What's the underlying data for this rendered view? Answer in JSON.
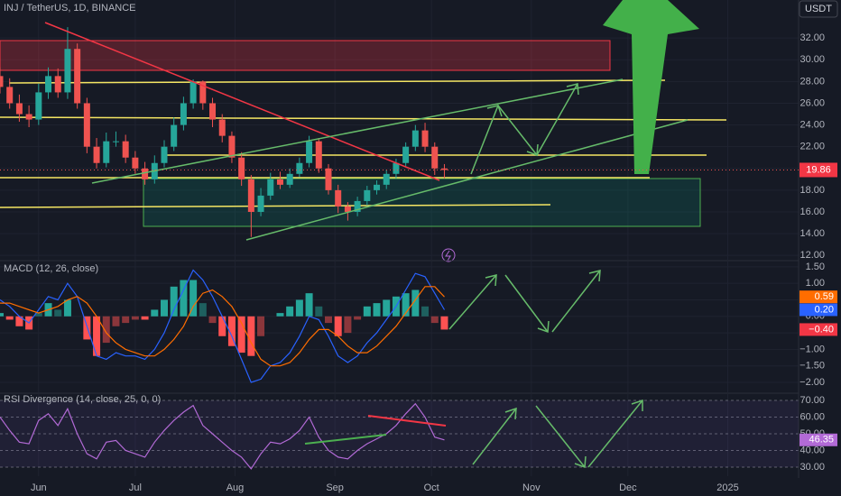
{
  "header": {
    "symbol": "INJ / TetherUS, 1D, BINANCE",
    "currency": "USDT"
  },
  "chart_data": [
    {
      "type": "candlestick",
      "x": [
        -12,
        -9,
        -6,
        -3,
        0,
        3,
        6,
        9,
        12,
        15,
        18,
        21,
        24,
        27,
        30,
        33,
        36,
        39,
        42,
        45,
        48,
        51,
        54,
        57,
        60,
        63,
        66,
        69,
        72,
        75,
        78,
        81,
        84,
        87,
        90,
        93,
        96,
        99,
        102,
        105,
        108,
        111,
        114,
        117,
        120,
        123,
        126
      ],
      "open": [
        28.5,
        27.5,
        26,
        25,
        24.5,
        27,
        28.5,
        27,
        31,
        26,
        22,
        20.5,
        22.5,
        22.5,
        21,
        20,
        19,
        20.5,
        22,
        24,
        26,
        28,
        26,
        24.5,
        23,
        21,
        19,
        16,
        17.5,
        19,
        18.5,
        19.5,
        20.5,
        22.5,
        20,
        18,
        16.5,
        16,
        17,
        18,
        18.5,
        19.5,
        20.5,
        22,
        23.5,
        22,
        20
      ],
      "high": [
        29.3,
        28.3,
        26.8,
        25.8,
        27.8,
        29.3,
        29.2,
        33.0,
        31.5,
        26.5,
        22.8,
        23.3,
        23.4,
        23.1,
        21.6,
        20.6,
        21.2,
        22.6,
        24.7,
        26.6,
        28.2,
        28.1,
        26.5,
        25.0,
        23.4,
        21.5,
        19.4,
        18.2,
        19.6,
        19.7,
        20.0,
        21.0,
        23.0,
        22.8,
        20.4,
        18.5,
        16.9,
        17.4,
        18.4,
        18.9,
        19.9,
        20.9,
        22.4,
        24.0,
        24.2,
        22.4,
        20.4
      ],
      "low": [
        26.9,
        25.5,
        24.3,
        23.8,
        24.0,
        26.4,
        26.5,
        26.4,
        25.5,
        21.4,
        20.0,
        20.1,
        22.0,
        20.5,
        19.5,
        18.5,
        18.6,
        20.1,
        21.6,
        23.5,
        25.5,
        25.4,
        23.8,
        22.4,
        20.5,
        18.4,
        13.7,
        15.6,
        17.1,
        18.1,
        18.2,
        19.2,
        20.1,
        19.6,
        17.6,
        15.9,
        15.2,
        15.6,
        16.6,
        17.6,
        18.1,
        19.1,
        20.2,
        21.6,
        21.5,
        19.4,
        19.1
      ],
      "close": [
        27.5,
        26,
        25,
        24.5,
        27,
        28.5,
        27,
        31,
        26,
        22,
        20.5,
        22.5,
        22.5,
        21,
        20,
        19,
        20.5,
        22,
        24,
        26,
        28,
        26,
        24.5,
        23,
        21,
        19,
        16,
        17.5,
        19,
        18.5,
        19.5,
        20.5,
        22.5,
        20,
        18,
        16.5,
        16,
        17,
        18,
        18.5,
        19.5,
        20.5,
        22,
        23.5,
        22,
        20,
        19.86
      ],
      "up_color": "#26a69a",
      "down_color": "#ef5350",
      "xlim": [
        -12,
        236
      ],
      "xticks": [
        {
          "value": 0,
          "label": "Jun"
        },
        {
          "value": 30,
          "label": "Jul"
        },
        {
          "value": 61,
          "label": "Aug"
        },
        {
          "value": 92,
          "label": "Sep"
        },
        {
          "value": 122,
          "label": "Oct"
        },
        {
          "value": 153,
          "label": "Nov"
        },
        {
          "value": 183,
          "label": "Dec"
        },
        {
          "value": 214,
          "label": "2025"
        }
      ],
      "ylim": [
        11.6,
        35.5
      ],
      "yticks": [
        {
          "value": 12,
          "label": "12.00"
        },
        {
          "value": 14,
          "label": "14.00"
        },
        {
          "value": 16,
          "label": "16.00"
        },
        {
          "value": 18,
          "label": "18.00"
        },
        {
          "value": 20,
          "label": "20.00"
        },
        {
          "value": 22,
          "label": "22.00"
        },
        {
          "value": 24,
          "label": "24.00"
        },
        {
          "value": 26,
          "label": "26.00"
        },
        {
          "value": 28,
          "label": "28.00"
        },
        {
          "value": 30,
          "label": "30.00"
        },
        {
          "value": 32,
          "label": "32.00"
        }
      ]
    },
    {
      "type": "macd",
      "title": "MACD (12, 26, close)",
      "macd": {
        "color": "#2962ff",
        "last_label": "0.20",
        "values": [
          0.5,
          0.3,
          0.0,
          -0.2,
          0.2,
          0.6,
          0.5,
          1.0,
          0.6,
          -0.3,
          -1.2,
          -1.3,
          -1.1,
          -1.2,
          -1.2,
          -1.3,
          -1.0,
          -0.5,
          0.2,
          0.8,
          1.4,
          1.1,
          0.6,
          0.0,
          -0.6,
          -1.3,
          -2.0,
          -1.9,
          -1.5,
          -1.4,
          -1.1,
          -0.6,
          0.0,
          -0.1,
          -0.6,
          -1.2,
          -1.4,
          -1.2,
          -0.8,
          -0.5,
          -0.1,
          0.3,
          0.8,
          1.3,
          1.2,
          0.7,
          0.2
        ]
      },
      "signal": {
        "color": "#ff6d00",
        "last_label": "0.59",
        "values": [
          0.4,
          0.4,
          0.3,
          0.2,
          0.1,
          0.2,
          0.3,
          0.5,
          0.6,
          0.4,
          0.0,
          -0.5,
          -0.8,
          -1.0,
          -1.1,
          -1.2,
          -1.2,
          -1.0,
          -0.7,
          -0.3,
          0.3,
          0.7,
          0.8,
          0.6,
          0.3,
          -0.2,
          -0.8,
          -1.3,
          -1.5,
          -1.5,
          -1.4,
          -1.1,
          -0.7,
          -0.4,
          -0.4,
          -0.6,
          -0.9,
          -1.1,
          -1.1,
          -0.9,
          -0.6,
          -0.3,
          0.1,
          0.5,
          0.9,
          0.9,
          0.59
        ]
      },
      "histogram": {
        "up_color": "#26a69a",
        "down_color": "#ff5252",
        "last_label": "−0.40",
        "values": [
          0.1,
          -0.1,
          -0.3,
          -0.4,
          0.1,
          0.4,
          0.2,
          0.5,
          0.0,
          -0.7,
          -1.2,
          -0.8,
          -0.3,
          -0.2,
          -0.1,
          -0.1,
          0.2,
          0.5,
          0.9,
          1.1,
          1.1,
          0.4,
          -0.2,
          -0.6,
          -0.9,
          -1.1,
          -1.2,
          -0.6,
          0.0,
          0.1,
          0.3,
          0.5,
          0.7,
          0.3,
          -0.2,
          -0.6,
          -0.5,
          -0.1,
          0.3,
          0.4,
          0.5,
          0.6,
          0.7,
          0.8,
          0.3,
          -0.2,
          -0.4
        ]
      },
      "ylim": [
        -2.3,
        1.66
      ],
      "yticks": [
        {
          "value": 1.5,
          "label": "1.50"
        },
        {
          "value": 1,
          "label": "1.00"
        },
        {
          "value": 0.5,
          "label": "0.50"
        },
        {
          "value": 0,
          "label": "0.00"
        },
        {
          "value": -0.5,
          "label": "−0.50"
        },
        {
          "value": -1,
          "label": "−1.00"
        },
        {
          "value": -1.5,
          "label": "−1.50"
        },
        {
          "value": -2,
          "label": "−2.00"
        }
      ]
    },
    {
      "type": "rsi",
      "title": "RSI Divergence (14, close, 25, 0, 0)",
      "color": "#b26ad6",
      "values": [
        60,
        52,
        45,
        44,
        58,
        62,
        55,
        65,
        50,
        38,
        35,
        45,
        46,
        40,
        38,
        36,
        45,
        52,
        58,
        63,
        67,
        55,
        50,
        45,
        40,
        36,
        29,
        38,
        45,
        44,
        47,
        52,
        60,
        48,
        40,
        36,
        35,
        40,
        44,
        47,
        50,
        55,
        62,
        68,
        60,
        48,
        46.35
      ],
      "ylim": [
        24.6,
        73.8
      ],
      "yticks": [
        {
          "value": 30,
          "label": "30.00"
        },
        {
          "value": 40,
          "label": "40.00"
        },
        {
          "value": 50,
          "label": "50.00"
        },
        {
          "value": 60,
          "label": "60.00"
        },
        {
          "value": 70,
          "label": "70.00"
        }
      ]
    }
  ]
}
